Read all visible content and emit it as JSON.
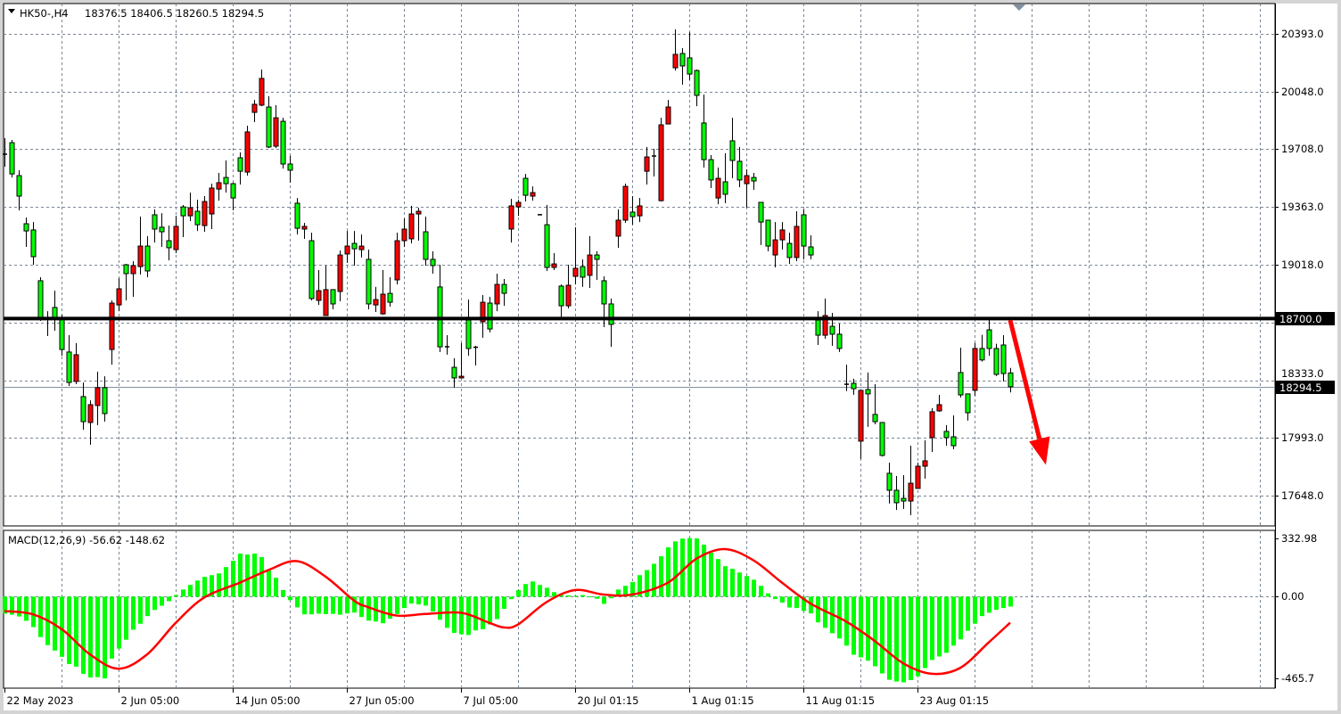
{
  "header": {
    "symbol_timeframe": "HK50-,H4",
    "ohlc": "18376.5 18406.5 18260.5 18294.5",
    "menu_icon": "triangle-down-icon"
  },
  "chart_data": [
    {
      "type": "candlestick",
      "title": "HK50-,H4",
      "ylim": [
        17467,
        20573
      ],
      "grid": true,
      "colors": {
        "bullish": "#ff0000",
        "bearish": "#00ff00",
        "outline": "#000000",
        "grid": "#7a8696",
        "background": "#ffffff"
      },
      "y_ticks": [
        {
          "value": 20393.0,
          "label": "20393.0"
        },
        {
          "value": 20048.0,
          "label": "20048.0"
        },
        {
          "value": 19708.0,
          "label": "19708.0"
        },
        {
          "value": 19363.0,
          "label": "19363.0"
        },
        {
          "value": 19018.0,
          "label": "19018.0"
        },
        {
          "value": 18333.0,
          "label": "18333.0"
        },
        {
          "value": 17993.0,
          "label": "17993.0"
        },
        {
          "value": 17648.0,
          "label": "17648.0"
        }
      ],
      "x_tick_labels": [
        {
          "bar": 0,
          "label": "22 May 2023"
        },
        {
          "bar": 16,
          "label": "2 Jun 05:00"
        },
        {
          "bar": 32,
          "label": "14 Jun 05:00"
        },
        {
          "bar": 48,
          "label": "27 Jun 05:00"
        },
        {
          "bar": 64,
          "label": "7 Jul 05:00"
        },
        {
          "bar": 80,
          "label": "20 Jul 01:15"
        },
        {
          "bar": 96,
          "label": "1 Aug 01:15"
        },
        {
          "bar": 112,
          "label": "11 Aug 01:15"
        },
        {
          "bar": 128,
          "label": "23 Aug 01:15"
        }
      ],
      "horizontal_line": {
        "value": 18700.0,
        "label": "18700.0",
        "color": "#000000"
      },
      "current_price": {
        "value": 18294.5,
        "label": "18294.5"
      },
      "annotation_arrow": {
        "from": {
          "bar": 141,
          "price": 18690
        },
        "to": {
          "bar": 146,
          "price": 17830
        },
        "color": "#ff0000"
      },
      "candles_ohlc": [
        [
          19680,
          19773,
          19603,
          19675
        ],
        [
          19746,
          19762,
          19539,
          19560
        ],
        [
          19550,
          19582,
          19343,
          19428
        ],
        [
          19264,
          19301,
          19126,
          19221
        ],
        [
          19227,
          19274,
          19020,
          19068
        ],
        [
          18925,
          18946,
          18686,
          18702
        ],
        [
          18700,
          18744,
          18596,
          18695
        ],
        [
          18766,
          18866,
          18628,
          18702
        ],
        [
          18702,
          18723,
          18479,
          18516
        ],
        [
          18501,
          18601,
          18299,
          18320
        ],
        [
          18326,
          18554,
          18310,
          18485
        ],
        [
          18236,
          18320,
          18039,
          18087
        ],
        [
          18082,
          18214,
          17949,
          18188
        ],
        [
          18183,
          18384,
          18066,
          18289
        ],
        [
          18289,
          18357,
          18087,
          18135
        ],
        [
          18516,
          18808,
          18426,
          18792
        ],
        [
          18781,
          18940,
          18744,
          18877
        ],
        [
          19020,
          19025,
          18808,
          18967
        ],
        [
          18967,
          19041,
          18829,
          19015
        ],
        [
          19009,
          19306,
          18962,
          19131
        ],
        [
          19131,
          19190,
          18946,
          18983
        ],
        [
          19317,
          19349,
          19152,
          19232
        ],
        [
          19243,
          19327,
          19126,
          19216
        ],
        [
          19163,
          19253,
          19046,
          19121
        ],
        [
          19110,
          19311,
          19089,
          19248
        ],
        [
          19364,
          19375,
          19184,
          19311
        ],
        [
          19311,
          19449,
          19280,
          19359
        ],
        [
          19338,
          19407,
          19221,
          19258
        ],
        [
          19253,
          19428,
          19216,
          19396
        ],
        [
          19322,
          19502,
          19232,
          19476
        ],
        [
          19470,
          19566,
          19401,
          19508
        ],
        [
          19539,
          19640,
          19449,
          19502
        ],
        [
          19502,
          19508,
          19343,
          19417
        ],
        [
          19656,
          19688,
          19497,
          19576
        ],
        [
          19571,
          19847,
          19550,
          19810
        ],
        [
          19926,
          20000,
          19868,
          19974
        ],
        [
          19969,
          20181,
          19963,
          20128
        ],
        [
          19958,
          20022,
          19714,
          19720
        ],
        [
          19725,
          19969,
          19714,
          19894
        ],
        [
          19873,
          19894,
          19592,
          19619
        ],
        [
          19619,
          19667,
          19508,
          19582
        ],
        [
          19386,
          19417,
          19200,
          19237
        ],
        [
          19232,
          19269,
          19174,
          19248
        ],
        [
          19163,
          19211,
          18808,
          18819
        ],
        [
          18808,
          18988,
          18781,
          18866
        ],
        [
          18718,
          19015,
          18718,
          18872
        ],
        [
          18872,
          18872,
          18755,
          18787
        ],
        [
          18861,
          19105,
          18803,
          19078
        ],
        [
          19084,
          19221,
          19031,
          19131
        ],
        [
          19147,
          19221,
          19015,
          19115
        ],
        [
          19110,
          19200,
          19063,
          19131
        ],
        [
          19052,
          19110,
          18755,
          18787
        ],
        [
          18781,
          18888,
          18739,
          18813
        ],
        [
          18728,
          18988,
          18723,
          18845
        ],
        [
          18850,
          18946,
          18771,
          18797
        ],
        [
          18930,
          19211,
          18903,
          19163
        ],
        [
          19163,
          19296,
          19126,
          19232
        ],
        [
          19174,
          19370,
          19147,
          19322
        ],
        [
          19322,
          19359,
          19163,
          19338
        ],
        [
          19216,
          19306,
          19015,
          19052
        ],
        [
          19052,
          19100,
          18967,
          19015
        ],
        [
          18888,
          19020,
          18501,
          18532
        ],
        [
          18535,
          18601,
          18485,
          18530
        ],
        [
          18410,
          18464,
          18289,
          18347
        ],
        [
          18347,
          18554,
          18347,
          18357
        ],
        [
          18691,
          18813,
          18479,
          18522
        ],
        [
          18530,
          18538,
          18421,
          18532
        ],
        [
          18681,
          18840,
          18586,
          18797
        ],
        [
          18792,
          18829,
          18617,
          18638
        ],
        [
          18787,
          18967,
          18744,
          18903
        ],
        [
          18903,
          18935,
          18776,
          18850
        ],
        [
          19232,
          19412,
          19152,
          19370
        ],
        [
          19364,
          19407,
          19311,
          19391
        ],
        [
          19534,
          19560,
          19396,
          19433
        ],
        [
          19428,
          19486,
          19401,
          19449
        ],
        [
          19320,
          19322,
          19314,
          19317
        ],
        [
          19258,
          19375,
          18983,
          19004
        ],
        [
          19004,
          19089,
          18988,
          19025
        ],
        [
          18893,
          18903,
          18702,
          18776
        ],
        [
          18776,
          19020,
          18760,
          18898
        ],
        [
          18951,
          19243,
          18903,
          18999
        ],
        [
          19009,
          19052,
          18888,
          18946
        ],
        [
          18957,
          19190,
          18882,
          19078
        ],
        [
          19078,
          19100,
          18930,
          19052
        ],
        [
          18925,
          18951,
          18649,
          18787
        ],
        [
          18787,
          18819,
          18532,
          18665
        ],
        [
          19190,
          19349,
          19121,
          19285
        ],
        [
          19285,
          19502,
          19269,
          19486
        ],
        [
          19333,
          19428,
          19258,
          19306
        ],
        [
          19311,
          19417,
          19274,
          19370
        ],
        [
          19576,
          19720,
          19497,
          19661
        ],
        [
          19665,
          19709,
          19545,
          19669
        ],
        [
          19401,
          19894,
          19396,
          19852
        ],
        [
          19857,
          20000,
          19857,
          19958
        ],
        [
          20191,
          20419,
          20175,
          20271
        ],
        [
          20276,
          20308,
          20091,
          20202
        ],
        [
          20250,
          20403,
          20117,
          20154
        ],
        [
          20175,
          20181,
          19963,
          20027
        ],
        [
          19863,
          20032,
          19598,
          19645
        ],
        [
          19645,
          19672,
          19476,
          19524
        ],
        [
          19417,
          19598,
          19380,
          19534
        ],
        [
          19513,
          19683,
          19386,
          19439
        ],
        [
          19757,
          19894,
          19534,
          19640
        ],
        [
          19635,
          19720,
          19481,
          19524
        ],
        [
          19502,
          19587,
          19359,
          19550
        ],
        [
          19539,
          19566,
          19465,
          19518
        ],
        [
          19391,
          19391,
          19137,
          19274
        ],
        [
          19285,
          19285,
          19100,
          19131
        ],
        [
          19078,
          19274,
          19004,
          19168
        ],
        [
          19168,
          19274,
          19110,
          19227
        ],
        [
          19147,
          19211,
          19025,
          19063
        ],
        [
          19063,
          19338,
          19041,
          19248
        ],
        [
          19317,
          19349,
          19052,
          19131
        ],
        [
          19126,
          19195,
          19052,
          19078
        ],
        [
          18691,
          18744,
          18543,
          18601
        ],
        [
          18601,
          18819,
          18580,
          18718
        ],
        [
          18654,
          18734,
          18538,
          18607
        ],
        [
          18607,
          18670,
          18501,
          18522
        ],
        [
          18312,
          18426,
          18269,
          18310
        ],
        [
          18315,
          18342,
          18247,
          18283
        ],
        [
          17971,
          18273,
          17865,
          18273
        ],
        [
          18278,
          18379,
          18056,
          18252
        ],
        [
          18130,
          18310,
          18071,
          18087
        ],
        [
          18082,
          18082,
          17880,
          17886
        ],
        [
          17780,
          17843,
          17600,
          17679
        ],
        [
          17679,
          17764,
          17562,
          17605
        ],
        [
          17631,
          17769,
          17568,
          17615
        ],
        [
          17615,
          17944,
          17531,
          17721
        ],
        [
          17690,
          17843,
          17690,
          17822
        ],
        [
          17822,
          17976,
          17748,
          17854
        ],
        [
          17992,
          18167,
          17907,
          18146
        ],
        [
          18151,
          18246,
          18146,
          18188
        ],
        [
          18029,
          18066,
          17944,
          17992
        ],
        [
          17997,
          18124,
          17923,
          17944
        ],
        [
          18379,
          18527,
          18230,
          18246
        ],
        [
          18252,
          18252,
          18093,
          18140
        ],
        [
          18273,
          18554,
          18241,
          18522
        ],
        [
          18522,
          18603,
          18444,
          18454
        ],
        [
          18633,
          18700,
          18479,
          18522
        ],
        [
          18522,
          18550,
          18358,
          18368
        ],
        [
          18543,
          18601,
          18326,
          18373
        ],
        [
          18376.5,
          18406.5,
          18260.5,
          18294.5
        ]
      ]
    },
    {
      "type": "bar",
      "title": "MACD(12,26,9) -56.62 -148.62",
      "ylim": [
        -523,
        379
      ],
      "colors": {
        "histogram": "#00ff00",
        "signal": "#ff0000"
      },
      "y_ticks": [
        {
          "value": 332.98,
          "label": "332.98"
        },
        {
          "value": 0,
          "label": "0.00"
        },
        {
          "value": -465.7,
          "label": "-465.7"
        }
      ],
      "histogram": [
        -97,
        -103,
        -113,
        -138,
        -174,
        -231,
        -277,
        -308,
        -344,
        -385,
        -400,
        -441,
        -462,
        -460,
        -467,
        -354,
        -297,
        -246,
        -189,
        -155,
        -111,
        -76,
        -52,
        -26,
        9,
        41,
        67,
        92,
        113,
        123,
        133,
        169,
        205,
        246,
        241,
        246,
        226,
        149,
        108,
        38,
        -20,
        -61,
        -101,
        -101,
        -97,
        -100,
        -98,
        -103,
        -96,
        -91,
        -116,
        -137,
        -142,
        -152,
        -126,
        -99,
        -65,
        -39,
        -44,
        -51,
        -85,
        -132,
        -178,
        -207,
        -215,
        -219,
        -193,
        -186,
        -159,
        -128,
        -70,
        -14,
        38,
        72,
        87,
        67,
        51,
        26,
        9,
        7,
        5,
        9,
        2,
        -12,
        -41,
        -9,
        41,
        62,
        84,
        123,
        152,
        188,
        231,
        282,
        316,
        332,
        335,
        333,
        297,
        251,
        215,
        174,
        159,
        138,
        118,
        97,
        62,
        19,
        -14,
        -34,
        -62,
        -65,
        -82,
        -96,
        -147,
        -178,
        -209,
        -239,
        -280,
        -332,
        -347,
        -366,
        -398,
        -439,
        -475,
        -485,
        -490,
        -477,
        -455,
        -408,
        -362,
        -342,
        -321,
        -280,
        -244,
        -195,
        -154,
        -111,
        -92,
        -75,
        -65,
        -56.62
      ],
      "signal": [
        {
          "bar": 0,
          "value": -82
        },
        {
          "bar": 4,
          "value": -101
        },
        {
          "bar": 8,
          "value": -185
        },
        {
          "bar": 12,
          "value": -330
        },
        {
          "bar": 16,
          "value": -412
        },
        {
          "bar": 20,
          "value": -330
        },
        {
          "bar": 24,
          "value": -150
        },
        {
          "bar": 28,
          "value": -5
        },
        {
          "bar": 33,
          "value": 80
        },
        {
          "bar": 37,
          "value": 152
        },
        {
          "bar": 41,
          "value": 203
        },
        {
          "bar": 45,
          "value": 115
        },
        {
          "bar": 49,
          "value": -22
        },
        {
          "bar": 51,
          "value": -60
        },
        {
          "bar": 55,
          "value": -108
        },
        {
          "bar": 59,
          "value": -99
        },
        {
          "bar": 64,
          "value": -92
        },
        {
          "bar": 68,
          "value": -150
        },
        {
          "bar": 70,
          "value": -176
        },
        {
          "bar": 72,
          "value": -159
        },
        {
          "bar": 76,
          "value": -31
        },
        {
          "bar": 80,
          "value": 38
        },
        {
          "bar": 84,
          "value": 12
        },
        {
          "bar": 88,
          "value": 12
        },
        {
          "bar": 93,
          "value": 80
        },
        {
          "bar": 97,
          "value": 217
        },
        {
          "bar": 101,
          "value": 272
        },
        {
          "bar": 105,
          "value": 208
        },
        {
          "bar": 109,
          "value": 80
        },
        {
          "bar": 113,
          "value": -39
        },
        {
          "bar": 118,
          "value": -142
        },
        {
          "bar": 122,
          "value": -253
        },
        {
          "bar": 126,
          "value": -381
        },
        {
          "bar": 130,
          "value": -441
        },
        {
          "bar": 134,
          "value": -407
        },
        {
          "bar": 138,
          "value": -261
        },
        {
          "bar": 141,
          "value": -148.62
        }
      ]
    }
  ]
}
